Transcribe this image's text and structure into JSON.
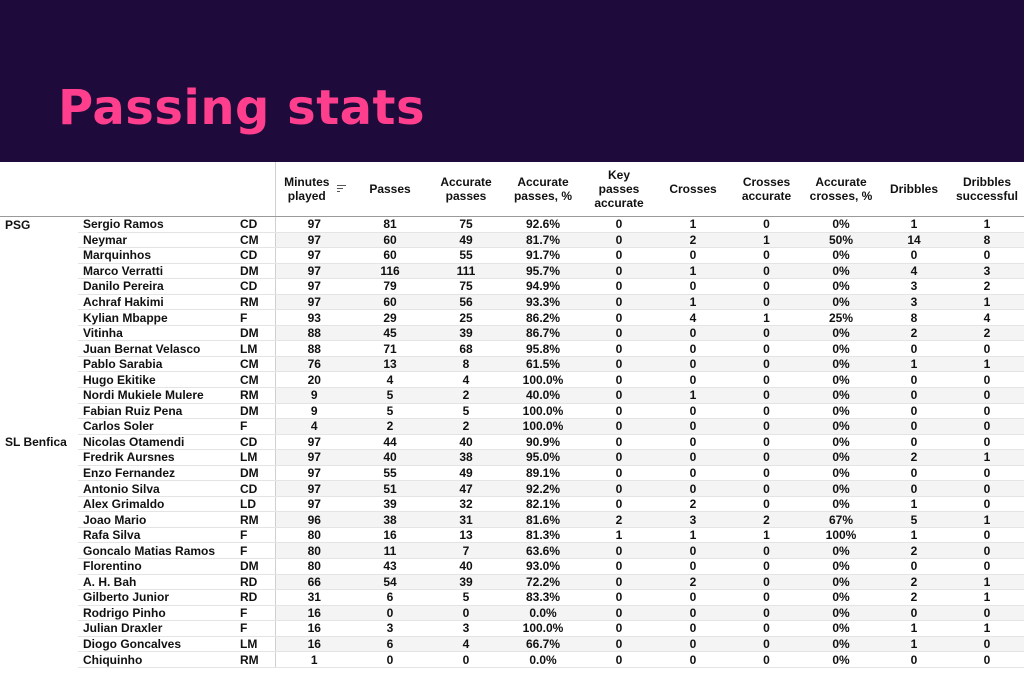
{
  "page": {
    "title": "Passing stats"
  },
  "columns": [
    "Minutes played",
    "Passes",
    "Accurate passes",
    "Accurate passes, %",
    "Key passes accurate",
    "Crosses",
    "Crosses accurate",
    "Accurate crosses, %",
    "Dribbles",
    "Dribbles successful"
  ],
  "rows": [
    {
      "team": "PSG",
      "player": "Sergio Ramos",
      "pos": "CD",
      "stats": [
        "97",
        "81",
        "75",
        "92.6%",
        "0",
        "1",
        "0",
        "0%",
        "1",
        "1"
      ]
    },
    {
      "team": "",
      "player": "Neymar",
      "pos": "CM",
      "stats": [
        "97",
        "60",
        "49",
        "81.7%",
        "0",
        "2",
        "1",
        "50%",
        "14",
        "8"
      ]
    },
    {
      "team": "",
      "player": "Marquinhos",
      "pos": "CD",
      "stats": [
        "97",
        "60",
        "55",
        "91.7%",
        "0",
        "0",
        "0",
        "0%",
        "0",
        "0"
      ]
    },
    {
      "team": "",
      "player": "Marco Verratti",
      "pos": "DM",
      "stats": [
        "97",
        "116",
        "111",
        "95.7%",
        "0",
        "1",
        "0",
        "0%",
        "4",
        "3"
      ]
    },
    {
      "team": "",
      "player": "Danilo Pereira",
      "pos": "CD",
      "stats": [
        "97",
        "79",
        "75",
        "94.9%",
        "0",
        "0",
        "0",
        "0%",
        "3",
        "2"
      ]
    },
    {
      "team": "",
      "player": "Achraf Hakimi",
      "pos": "RM",
      "stats": [
        "97",
        "60",
        "56",
        "93.3%",
        "0",
        "1",
        "0",
        "0%",
        "3",
        "1"
      ]
    },
    {
      "team": "",
      "player": "Kylian Mbappe",
      "pos": "F",
      "stats": [
        "93",
        "29",
        "25",
        "86.2%",
        "0",
        "4",
        "1",
        "25%",
        "8",
        "4"
      ]
    },
    {
      "team": "",
      "player": "Vitinha",
      "pos": "DM",
      "stats": [
        "88",
        "45",
        "39",
        "86.7%",
        "0",
        "0",
        "0",
        "0%",
        "2",
        "2"
      ]
    },
    {
      "team": "",
      "player": "Juan Bernat Velasco",
      "pos": "LM",
      "stats": [
        "88",
        "71",
        "68",
        "95.8%",
        "0",
        "0",
        "0",
        "0%",
        "0",
        "0"
      ]
    },
    {
      "team": "",
      "player": "Pablo Sarabia",
      "pos": "CM",
      "stats": [
        "76",
        "13",
        "8",
        "61.5%",
        "0",
        "0",
        "0",
        "0%",
        "1",
        "1"
      ]
    },
    {
      "team": "",
      "player": "Hugo Ekitike",
      "pos": "CM",
      "stats": [
        "20",
        "4",
        "4",
        "100.0%",
        "0",
        "0",
        "0",
        "0%",
        "0",
        "0"
      ]
    },
    {
      "team": "",
      "player": "Nordi Mukiele Mulere",
      "pos": "RM",
      "stats": [
        "9",
        "5",
        "2",
        "40.0%",
        "0",
        "1",
        "0",
        "0%",
        "0",
        "0"
      ]
    },
    {
      "team": "",
      "player": "Fabian Ruiz Pena",
      "pos": "DM",
      "stats": [
        "9",
        "5",
        "5",
        "100.0%",
        "0",
        "0",
        "0",
        "0%",
        "0",
        "0"
      ]
    },
    {
      "team": "",
      "player": "Carlos Soler",
      "pos": "F",
      "stats": [
        "4",
        "2",
        "2",
        "100.0%",
        "0",
        "0",
        "0",
        "0%",
        "0",
        "0"
      ]
    },
    {
      "team": "SL Benfica",
      "player": "Nicolas Otamendi",
      "pos": "CD",
      "stats": [
        "97",
        "44",
        "40",
        "90.9%",
        "0",
        "0",
        "0",
        "0%",
        "0",
        "0"
      ]
    },
    {
      "team": "",
      "player": "Fredrik Aursnes",
      "pos": "LM",
      "stats": [
        "97",
        "40",
        "38",
        "95.0%",
        "0",
        "0",
        "0",
        "0%",
        "2",
        "1"
      ]
    },
    {
      "team": "",
      "player": "Enzo Fernandez",
      "pos": "DM",
      "stats": [
        "97",
        "55",
        "49",
        "89.1%",
        "0",
        "0",
        "0",
        "0%",
        "0",
        "0"
      ]
    },
    {
      "team": "",
      "player": "Antonio Silva",
      "pos": "CD",
      "stats": [
        "97",
        "51",
        "47",
        "92.2%",
        "0",
        "0",
        "0",
        "0%",
        "0",
        "0"
      ]
    },
    {
      "team": "",
      "player": "Alex Grimaldo",
      "pos": "LD",
      "stats": [
        "97",
        "39",
        "32",
        "82.1%",
        "0",
        "2",
        "0",
        "0%",
        "1",
        "0"
      ]
    },
    {
      "team": "",
      "player": "Joao Mario",
      "pos": "RM",
      "stats": [
        "96",
        "38",
        "31",
        "81.6%",
        "2",
        "3",
        "2",
        "67%",
        "5",
        "1"
      ]
    },
    {
      "team": "",
      "player": "Rafa Silva",
      "pos": "F",
      "stats": [
        "80",
        "16",
        "13",
        "81.3%",
        "1",
        "1",
        "1",
        "100%",
        "1",
        "0"
      ]
    },
    {
      "team": "",
      "player": "Goncalo Matias Ramos",
      "pos": "F",
      "stats": [
        "80",
        "11",
        "7",
        "63.6%",
        "0",
        "0",
        "0",
        "0%",
        "2",
        "0"
      ]
    },
    {
      "team": "",
      "player": "Florentino",
      "pos": "DM",
      "stats": [
        "80",
        "43",
        "40",
        "93.0%",
        "0",
        "0",
        "0",
        "0%",
        "0",
        "0"
      ]
    },
    {
      "team": "",
      "player": "A. H. Bah",
      "pos": "RD",
      "stats": [
        "66",
        "54",
        "39",
        "72.2%",
        "0",
        "2",
        "0",
        "0%",
        "2",
        "1"
      ]
    },
    {
      "team": "",
      "player": "Gilberto Junior",
      "pos": "RD",
      "stats": [
        "31",
        "6",
        "5",
        "83.3%",
        "0",
        "0",
        "0",
        "0%",
        "2",
        "1"
      ]
    },
    {
      "team": "",
      "player": "Rodrigo Pinho",
      "pos": "F",
      "stats": [
        "16",
        "0",
        "0",
        "0.0%",
        "0",
        "0",
        "0",
        "0%",
        "0",
        "0"
      ]
    },
    {
      "team": "",
      "player": "Julian Draxler",
      "pos": "F",
      "stats": [
        "16",
        "3",
        "3",
        "100.0%",
        "0",
        "0",
        "0",
        "0%",
        "1",
        "1"
      ]
    },
    {
      "team": "",
      "player": "Diogo Goncalves",
      "pos": "LM",
      "stats": [
        "16",
        "6",
        "4",
        "66.7%",
        "0",
        "0",
        "0",
        "0%",
        "1",
        "0"
      ]
    },
    {
      "team": "",
      "player": "Chiquinho",
      "pos": "RM",
      "stats": [
        "1",
        "0",
        "0",
        "0.0%",
        "0",
        "0",
        "0",
        "0%",
        "0",
        "0"
      ]
    }
  ],
  "colors": {
    "banner": "#1f0b3b",
    "title": "#ff3f8d"
  },
  "icons": {
    "sort": "sort-descending-icon"
  }
}
